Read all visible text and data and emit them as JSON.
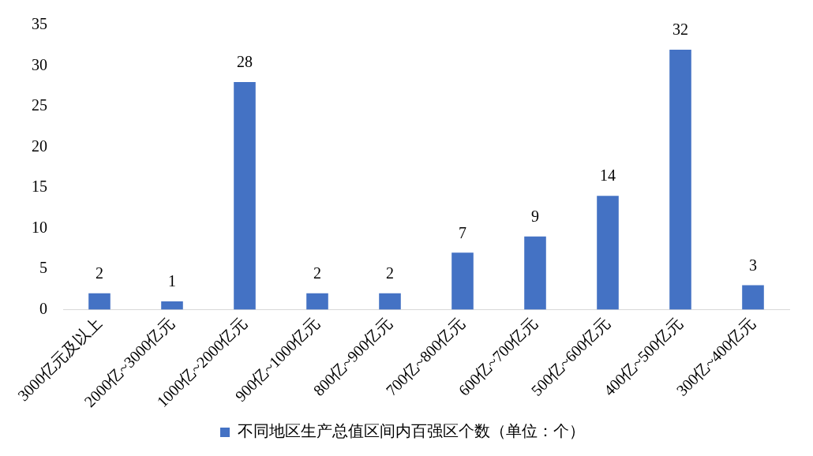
{
  "chart_data": {
    "type": "bar",
    "categories": [
      "3000亿元及以上",
      "2000亿~3000亿元",
      "1000亿~2000亿元",
      "900亿~1000亿元",
      "800亿~900亿元",
      "700亿~800亿元",
      "600亿~700亿元",
      "500亿~600亿元",
      "400亿~500亿元",
      "300亿~400亿元"
    ],
    "series": [
      {
        "name": "不同地区生产总值区间内百强区个数（单位：个）",
        "color": "#4472c4",
        "values": [
          2,
          1,
          28,
          2,
          2,
          7,
          9,
          14,
          32,
          3
        ]
      }
    ],
    "ylim": [
      0,
      35
    ],
    "yticks": [
      0,
      5,
      10,
      15,
      20,
      25,
      30,
      35
    ],
    "grid": false,
    "legend": "bottom",
    "data_labels": true
  }
}
